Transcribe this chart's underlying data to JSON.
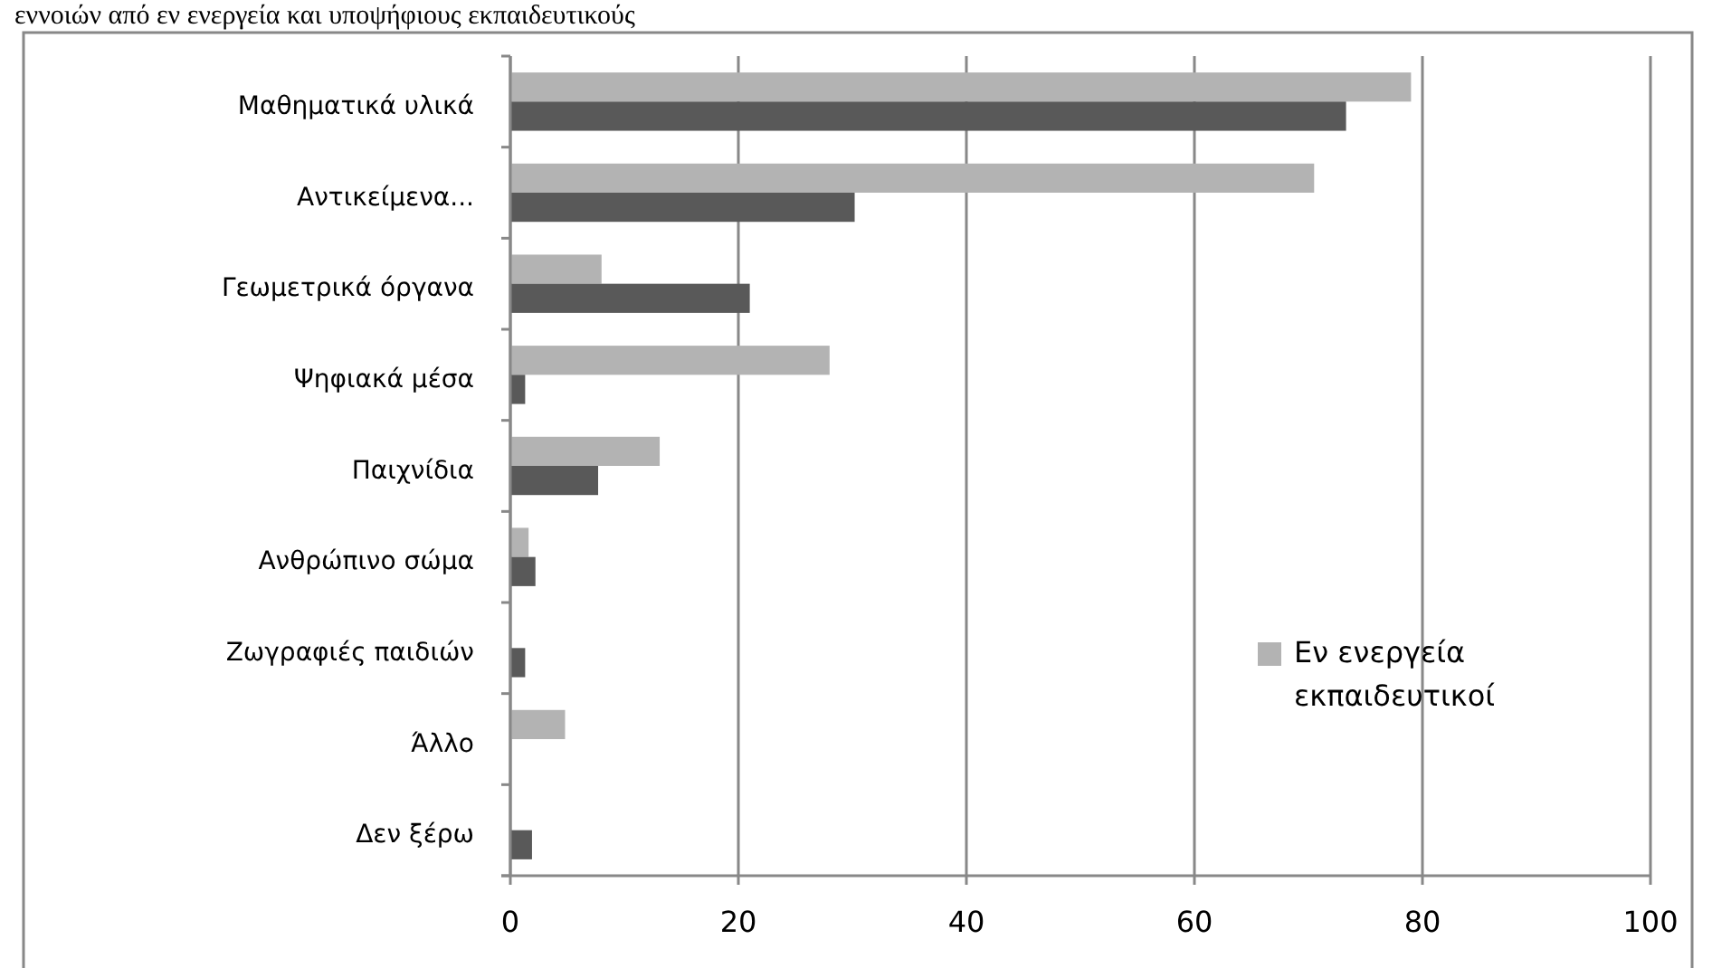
{
  "chart_data": {
    "type": "bar",
    "orientation": "horizontal",
    "title": "εννοιών από εν ενεργεία και υποψήφιους εκπαιδευτικούς",
    "categories": [
      "Μαθηματικά υλικά",
      "Αντικείμενα...",
      "Γεωμετρικά όργανα",
      "Ψηφιακά μέσα",
      "Παιχνίδια",
      "Ανθρώπινο σώμα",
      "Ζωγραφιές παιδιών",
      "Άλλο",
      "Δεν ξέρω"
    ],
    "series": [
      {
        "name": "Εν ενεργεία εκπαιδευτικοί",
        "color": "#b3b3b3",
        "values": [
          79,
          70.5,
          8,
          28,
          13.1,
          1.6,
          0,
          4.8,
          0
        ]
      },
      {
        "color": "#595959",
        "values": [
          73.3,
          30.2,
          21,
          1.3,
          7.7,
          2.2,
          1.3,
          0,
          1.9
        ]
      }
    ],
    "xlim": [
      0,
      100
    ],
    "xticks": [
      0,
      20,
      40,
      60,
      80,
      100
    ],
    "grid": "x",
    "legend": "right"
  }
}
